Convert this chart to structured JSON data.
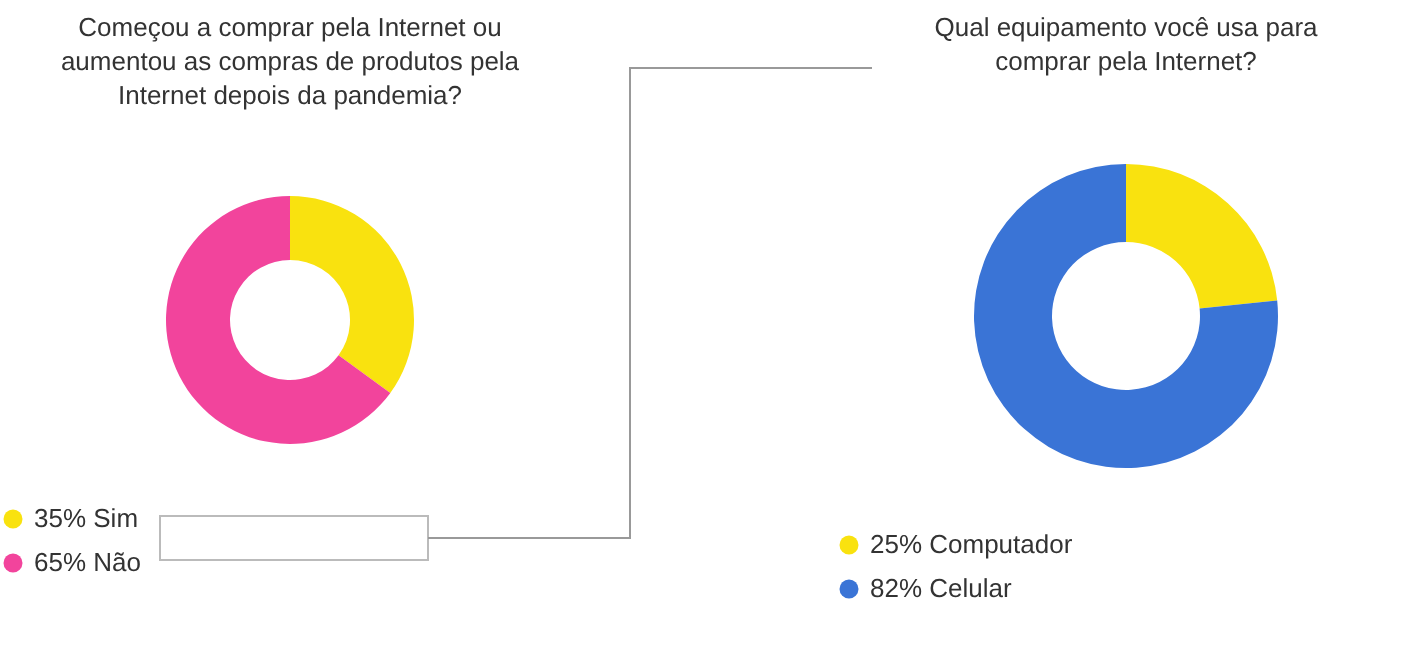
{
  "chart_data": [
    {
      "type": "donut",
      "title": "Começou a comprar pela Internet ou aumentou as compras de produtos pela Internet depois da pandemia?",
      "categories": [
        "Sim",
        "Não"
      ],
      "values": [
        35,
        65
      ],
      "value_labels": [
        "35%",
        "65%"
      ],
      "colors": [
        "#f9e20f",
        "#f2449c"
      ],
      "legend": "bottom left"
    },
    {
      "type": "donut",
      "title": "Qual equipamento você usa para comprar pela Internet?",
      "categories": [
        "Computador",
        "Celular"
      ],
      "values": [
        25,
        82
      ],
      "value_labels": [
        "25%",
        "82%"
      ],
      "colors": [
        "#f9e20f",
        "#3a74d6"
      ],
      "legend": "bottom left"
    }
  ]
}
